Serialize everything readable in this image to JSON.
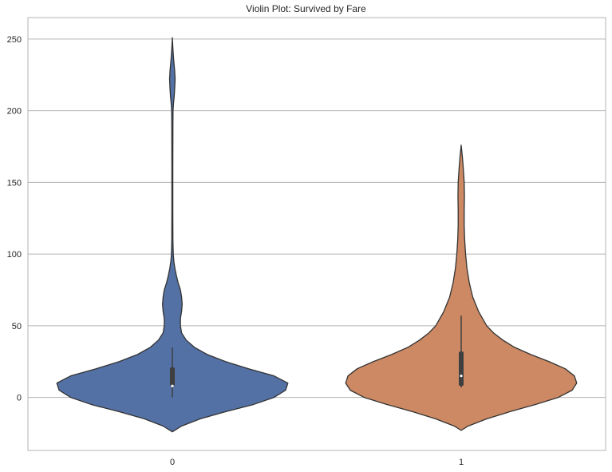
{
  "chart_data": {
    "type": "violin",
    "title": "Violin Plot: Survived by Fare",
    "xlabel": "",
    "ylabel": "",
    "categories": [
      "0",
      "1"
    ],
    "ylim": [
      -37,
      265
    ],
    "yticks": [
      0,
      50,
      100,
      150,
      200,
      250
    ],
    "grid": true,
    "legend": "none",
    "series": [
      {
        "category": "0",
        "color": "#5471a5",
        "kde": [
          {
            "y": -24,
            "w": 0.0
          },
          {
            "y": -20,
            "w": 0.08
          },
          {
            "y": -15,
            "w": 0.24
          },
          {
            "y": -10,
            "w": 0.46
          },
          {
            "y": -5,
            "w": 0.7
          },
          {
            "y": 0,
            "w": 0.88
          },
          {
            "y": 5,
            "w": 0.98
          },
          {
            "y": 10,
            "w": 1.0
          },
          {
            "y": 15,
            "w": 0.88
          },
          {
            "y": 20,
            "w": 0.66
          },
          {
            "y": 25,
            "w": 0.46
          },
          {
            "y": 30,
            "w": 0.3
          },
          {
            "y": 35,
            "w": 0.19
          },
          {
            "y": 40,
            "w": 0.12
          },
          {
            "y": 45,
            "w": 0.08
          },
          {
            "y": 50,
            "w": 0.07
          },
          {
            "y": 55,
            "w": 0.07
          },
          {
            "y": 60,
            "w": 0.08
          },
          {
            "y": 65,
            "w": 0.085
          },
          {
            "y": 70,
            "w": 0.08
          },
          {
            "y": 75,
            "w": 0.07
          },
          {
            "y": 80,
            "w": 0.05
          },
          {
            "y": 85,
            "w": 0.035
          },
          {
            "y": 90,
            "w": 0.022
          },
          {
            "y": 95,
            "w": 0.013
          },
          {
            "y": 100,
            "w": 0.008
          },
          {
            "y": 110,
            "w": 0.005
          },
          {
            "y": 130,
            "w": 0.004
          },
          {
            "y": 160,
            "w": 0.004
          },
          {
            "y": 190,
            "w": 0.005
          },
          {
            "y": 200,
            "w": 0.006
          },
          {
            "y": 205,
            "w": 0.01
          },
          {
            "y": 210,
            "w": 0.016
          },
          {
            "y": 215,
            "w": 0.02
          },
          {
            "y": 222,
            "w": 0.024
          },
          {
            "y": 228,
            "w": 0.02
          },
          {
            "y": 235,
            "w": 0.012
          },
          {
            "y": 243,
            "w": 0.005
          },
          {
            "y": 251,
            "w": 0.0
          }
        ],
        "box": {
          "q1": 8,
          "median": 8,
          "q3": 21,
          "whisker_low": 0,
          "whisker_high": 35
        }
      },
      {
        "category": "1",
        "color": "#cc8963",
        "kde": [
          {
            "y": -23,
            "w": 0.0
          },
          {
            "y": -20,
            "w": 0.06
          },
          {
            "y": -15,
            "w": 0.22
          },
          {
            "y": -10,
            "w": 0.42
          },
          {
            "y": -5,
            "w": 0.64
          },
          {
            "y": 0,
            "w": 0.84
          },
          {
            "y": 5,
            "w": 0.96
          },
          {
            "y": 10,
            "w": 1.0
          },
          {
            "y": 15,
            "w": 0.98
          },
          {
            "y": 20,
            "w": 0.9
          },
          {
            "y": 25,
            "w": 0.76
          },
          {
            "y": 30,
            "w": 0.6
          },
          {
            "y": 35,
            "w": 0.46
          },
          {
            "y": 40,
            "w": 0.36
          },
          {
            "y": 45,
            "w": 0.28
          },
          {
            "y": 50,
            "w": 0.22
          },
          {
            "y": 60,
            "w": 0.15
          },
          {
            "y": 70,
            "w": 0.1
          },
          {
            "y": 80,
            "w": 0.07
          },
          {
            "y": 90,
            "w": 0.05
          },
          {
            "y": 100,
            "w": 0.038
          },
          {
            "y": 110,
            "w": 0.03
          },
          {
            "y": 120,
            "w": 0.026
          },
          {
            "y": 130,
            "w": 0.026
          },
          {
            "y": 140,
            "w": 0.028
          },
          {
            "y": 150,
            "w": 0.026
          },
          {
            "y": 160,
            "w": 0.018
          },
          {
            "y": 168,
            "w": 0.01
          },
          {
            "y": 176,
            "w": 0.0
          }
        ],
        "box": {
          "q1": 8,
          "median": 15,
          "q3": 32,
          "whisker_low": 7,
          "whisker_high": 57
        }
      }
    ]
  }
}
